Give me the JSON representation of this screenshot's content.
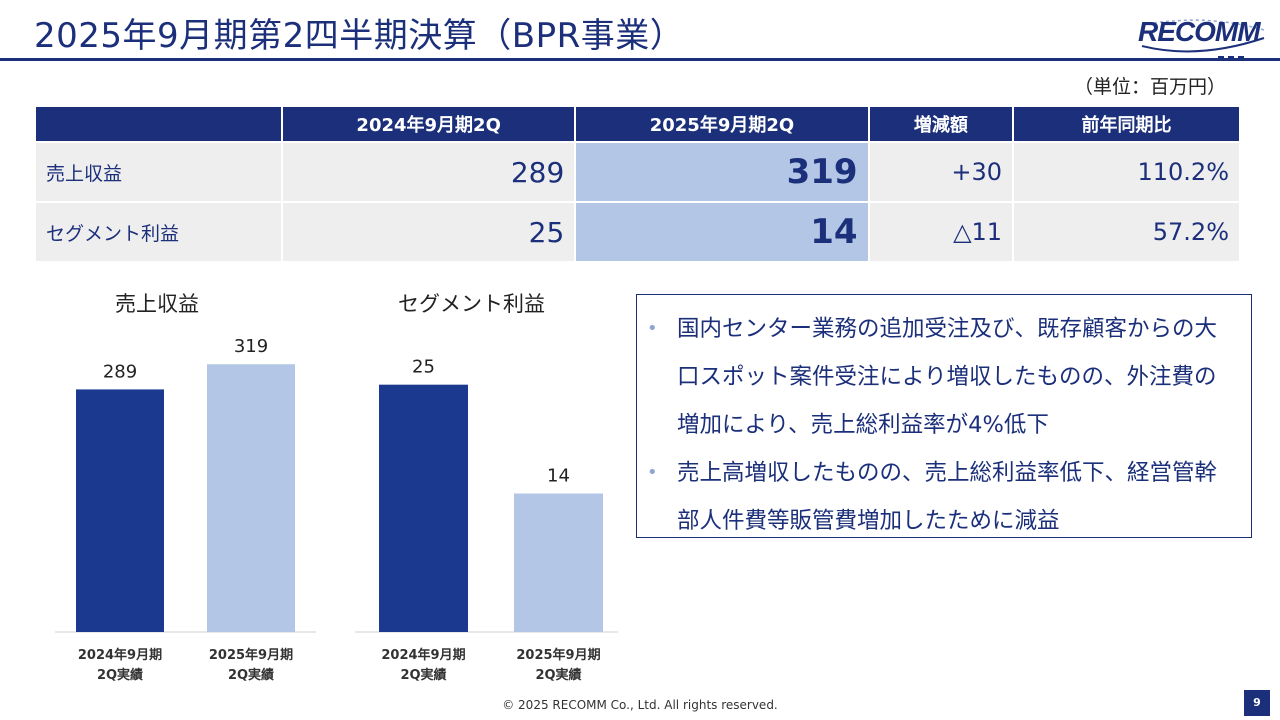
{
  "header": {
    "title": "2025年9月期第2四半期決算（BPR事業）",
    "logo_text": "RECOMM",
    "unit": "（単位：百万円）"
  },
  "table": {
    "headers": [
      "",
      "2024年9月期2Q",
      "2025年9月期2Q",
      "増減額",
      "前年同期比"
    ],
    "rows": [
      {
        "label": "売上収益",
        "prev": "289",
        "curr": "319",
        "diff": "+30",
        "ratio": "110.2%"
      },
      {
        "label": "セグメント利益",
        "prev": "25",
        "curr": "14",
        "diff": "△11",
        "ratio": "57.2%"
      }
    ]
  },
  "chart_data": [
    {
      "type": "bar",
      "title": "売上収益",
      "categories": [
        "2024年9月期\n2Q実績",
        "2025年9月期\n2Q実績"
      ],
      "values": [
        289,
        319
      ],
      "colors": [
        "#1b3a8f",
        "#b3c6e6"
      ],
      "ylim": [
        0,
        330
      ]
    },
    {
      "type": "bar",
      "title": "セグメント利益",
      "categories": [
        "2024年9月期\n2Q実績",
        "2025年9月期\n2Q実績"
      ],
      "values": [
        25,
        14
      ],
      "colors": [
        "#1b3a8f",
        "#b3c6e6"
      ],
      "ylim": [
        0,
        28
      ]
    }
  ],
  "notes": [
    "国内センター業務の追加受注及び、既存顧客からの大口スポット案件受注により増収したものの、外注費の増加により、売上総利益率が4%低下",
    "売上高増収したものの、売上総利益率低下、経営管幹部人件費等販管費増加したために減益"
  ],
  "footer": {
    "copyright": "© 2025 RECOMM Co., Ltd. All rights reserved.",
    "page": "9"
  }
}
